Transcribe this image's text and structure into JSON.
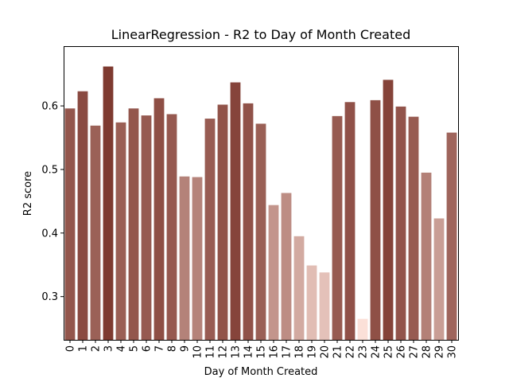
{
  "chart_data": {
    "type": "bar",
    "title": "LinearRegression - R2 to Day of Month Created",
    "xlabel": "Day of Month Created",
    "ylabel": "R2 score",
    "categories": [
      "0",
      "1",
      "2",
      "3",
      "4",
      "5",
      "6",
      "7",
      "8",
      "9",
      "10",
      "11",
      "12",
      "13",
      "14",
      "15",
      "16",
      "17",
      "18",
      "19",
      "20",
      "21",
      "22",
      "23",
      "24",
      "25",
      "26",
      "27",
      "28",
      "29",
      "30"
    ],
    "values": [
      0.596,
      0.623,
      0.569,
      0.662,
      0.574,
      0.596,
      0.585,
      0.612,
      0.587,
      0.489,
      0.488,
      0.58,
      0.602,
      0.637,
      0.604,
      0.572,
      0.444,
      0.463,
      0.395,
      0.349,
      0.338,
      0.584,
      0.606,
      0.265,
      0.609,
      0.641,
      0.599,
      0.583,
      0.495,
      0.423,
      0.558
    ],
    "ylim": [
      0.232,
      0.694
    ],
    "yticks": [
      "0.3",
      "0.4",
      "0.5",
      "0.6"
    ],
    "colormap": {
      "low": "#fbe0d8",
      "high": "#7e3a30"
    },
    "grid": false
  }
}
